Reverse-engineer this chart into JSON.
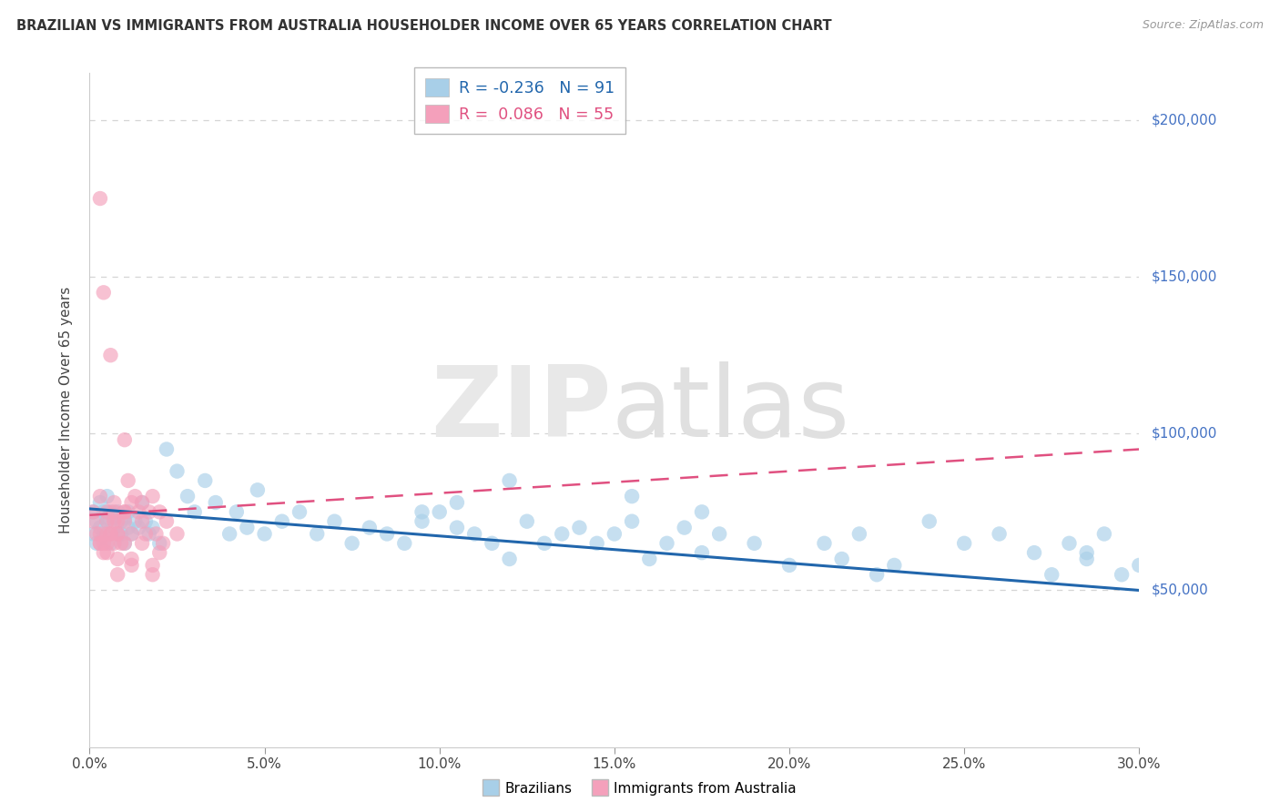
{
  "title": "BRAZILIAN VS IMMIGRANTS FROM AUSTRALIA HOUSEHOLDER INCOME OVER 65 YEARS CORRELATION CHART",
  "source": "Source: ZipAtlas.com",
  "ylabel": "Householder Income Over 65 years",
  "xlim": [
    0.0,
    0.3
  ],
  "ylim": [
    0,
    215000
  ],
  "ytick_vals": [
    50000,
    100000,
    150000,
    200000
  ],
  "ytick_labels_right": [
    "$50,000",
    "$100,000",
    "$150,000",
    "$200,000"
  ],
  "xticks": [
    0.0,
    0.05,
    0.1,
    0.15,
    0.2,
    0.25,
    0.3
  ],
  "xtick_labels": [
    "0.0%",
    "5.0%",
    "10.0%",
    "15.0%",
    "20.0%",
    "25.0%",
    "30.0%"
  ],
  "blue_color": "#a8cfe8",
  "pink_color": "#f4a0bb",
  "blue_line_color": "#2166ac",
  "pink_line_color": "#e05080",
  "grid_color": "#d5d5d5",
  "background": "#ffffff",
  "R1": "-0.236",
  "N1": "91",
  "R2": "0.086",
  "N2": "55",
  "brazil_x": [
    0.001,
    0.001,
    0.002,
    0.002,
    0.003,
    0.003,
    0.004,
    0.004,
    0.005,
    0.005,
    0.005,
    0.006,
    0.006,
    0.007,
    0.007,
    0.008,
    0.008,
    0.009,
    0.009,
    0.01,
    0.01,
    0.011,
    0.011,
    0.012,
    0.013,
    0.014,
    0.015,
    0.016,
    0.017,
    0.018,
    0.02,
    0.022,
    0.025,
    0.028,
    0.03,
    0.033,
    0.036,
    0.04,
    0.042,
    0.045,
    0.048,
    0.05,
    0.055,
    0.06,
    0.065,
    0.07,
    0.075,
    0.08,
    0.085,
    0.09,
    0.095,
    0.1,
    0.105,
    0.11,
    0.115,
    0.12,
    0.125,
    0.13,
    0.135,
    0.14,
    0.145,
    0.15,
    0.155,
    0.16,
    0.165,
    0.17,
    0.175,
    0.18,
    0.19,
    0.2,
    0.21,
    0.215,
    0.22,
    0.225,
    0.23,
    0.24,
    0.25,
    0.26,
    0.27,
    0.275,
    0.28,
    0.285,
    0.29,
    0.295,
    0.3,
    0.12,
    0.095,
    0.155,
    0.175,
    0.285,
    0.105
  ],
  "brazil_y": [
    75000,
    68000,
    72000,
    65000,
    78000,
    70000,
    75000,
    68000,
    80000,
    73000,
    72000,
    75000,
    65000,
    73000,
    70000,
    68000,
    75000,
    72000,
    68000,
    73000,
    65000,
    70000,
    75000,
    68000,
    72000,
    70000,
    78000,
    72000,
    68000,
    70000,
    65000,
    95000,
    88000,
    80000,
    75000,
    85000,
    78000,
    68000,
    75000,
    70000,
    82000,
    68000,
    72000,
    75000,
    68000,
    72000,
    65000,
    70000,
    68000,
    65000,
    72000,
    75000,
    70000,
    68000,
    65000,
    60000,
    72000,
    65000,
    68000,
    70000,
    65000,
    68000,
    72000,
    60000,
    65000,
    70000,
    62000,
    68000,
    65000,
    58000,
    65000,
    60000,
    68000,
    55000,
    58000,
    72000,
    65000,
    68000,
    62000,
    55000,
    65000,
    60000,
    68000,
    55000,
    58000,
    85000,
    75000,
    80000,
    75000,
    62000,
    78000
  ],
  "aus_x": [
    0.001,
    0.001,
    0.002,
    0.003,
    0.003,
    0.004,
    0.004,
    0.005,
    0.005,
    0.006,
    0.006,
    0.007,
    0.007,
    0.008,
    0.008,
    0.009,
    0.01,
    0.01,
    0.011,
    0.012,
    0.013,
    0.014,
    0.015,
    0.016,
    0.017,
    0.018,
    0.019,
    0.02,
    0.021,
    0.022,
    0.003,
    0.005,
    0.007,
    0.003,
    0.005,
    0.008,
    0.01,
    0.012,
    0.003,
    0.004,
    0.006,
    0.008,
    0.01,
    0.012,
    0.015,
    0.018,
    0.02,
    0.025,
    0.015,
    0.01,
    0.007,
    0.005,
    0.008,
    0.012,
    0.018
  ],
  "aus_y": [
    75000,
    72000,
    68000,
    175000,
    80000,
    65000,
    145000,
    75000,
    72000,
    125000,
    68000,
    75000,
    78000,
    72000,
    68000,
    65000,
    98000,
    75000,
    85000,
    78000,
    80000,
    75000,
    72000,
    68000,
    75000,
    80000,
    68000,
    75000,
    65000,
    72000,
    68000,
    65000,
    72000,
    65000,
    62000,
    68000,
    75000,
    68000,
    65000,
    62000,
    68000,
    55000,
    65000,
    60000,
    65000,
    58000,
    62000,
    68000,
    78000,
    72000,
    65000,
    68000,
    60000,
    58000,
    55000
  ]
}
